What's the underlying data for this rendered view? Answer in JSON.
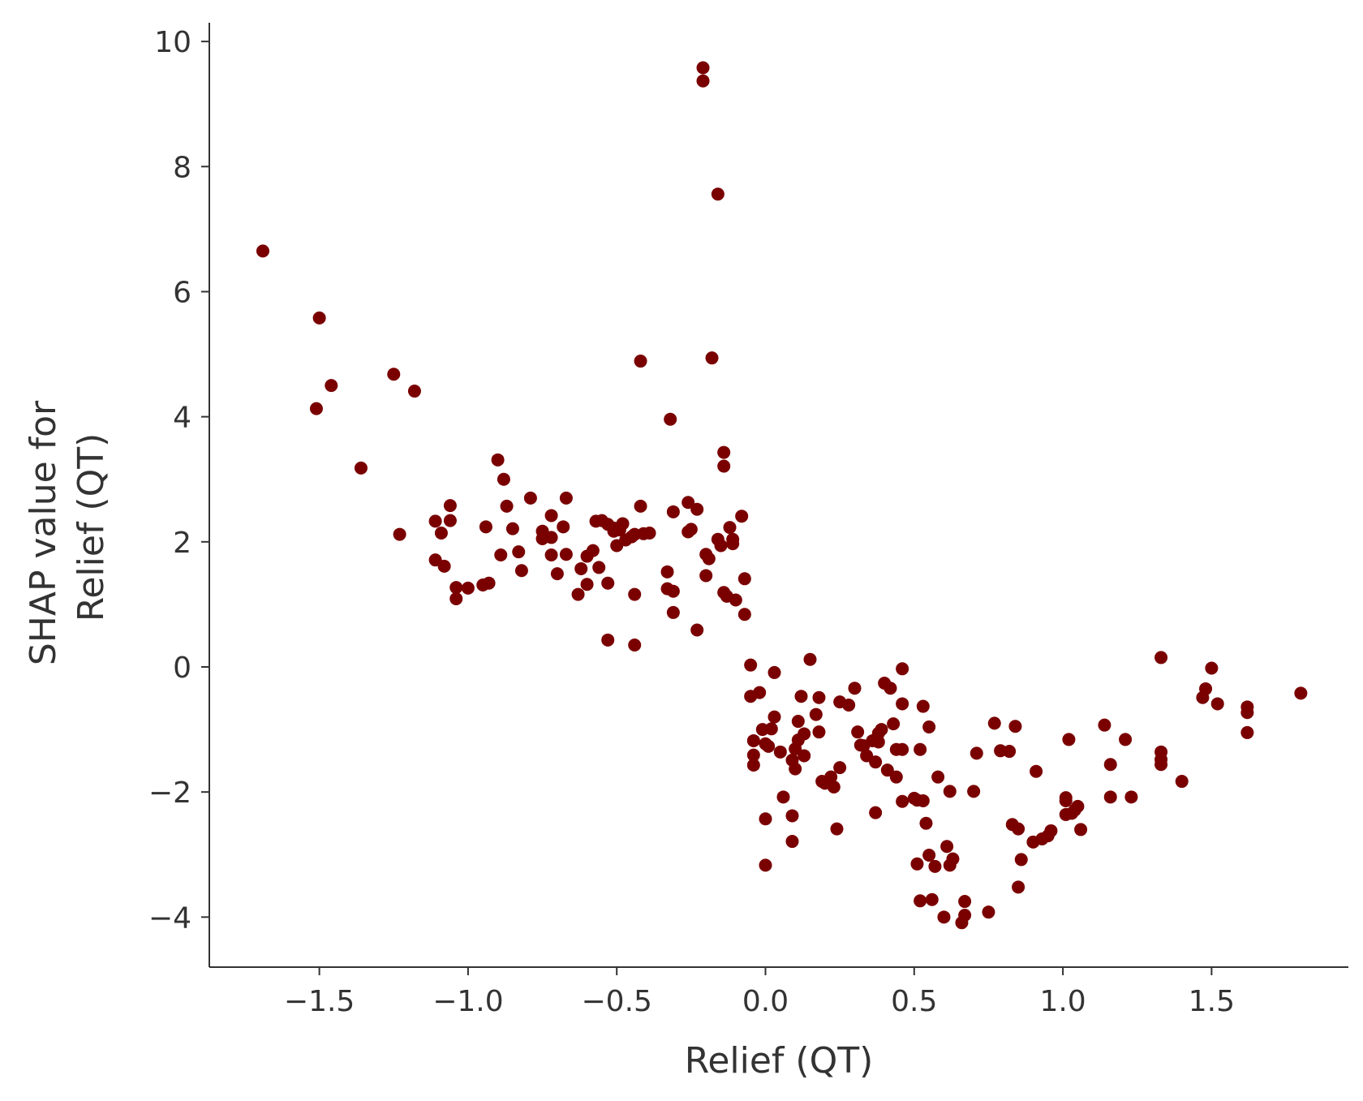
{
  "chart_data": {
    "type": "scatter",
    "title": "",
    "xlabel": "Relief (QT)",
    "ylabel_lines": [
      "SHAP value for",
      "Relief (QT)"
    ],
    "xlim": [
      -1.87,
      1.96
    ],
    "ylim": [
      -4.8,
      10.3
    ],
    "xticks": [
      -1.5,
      -1.0,
      -0.5,
      0.0,
      0.5,
      1.0,
      1.5
    ],
    "xtick_labels": [
      "−1.5",
      "−1.0",
      "−0.5",
      "0.0",
      "0.5",
      "1.0",
      "1.5"
    ],
    "yticks": [
      -4,
      -2,
      0,
      2,
      4,
      6,
      8,
      10
    ],
    "ytick_labels": [
      "−4",
      "−2",
      "0",
      "2",
      "4",
      "6",
      "8",
      "10"
    ],
    "grid": false,
    "color": "#7a0000",
    "points": [
      [
        -1.69,
        6.65
      ],
      [
        -1.5,
        5.58
      ],
      [
        -1.51,
        4.13
      ],
      [
        -1.46,
        4.5
      ],
      [
        -1.25,
        4.68
      ],
      [
        -1.18,
        4.41
      ],
      [
        -1.36,
        3.18
      ],
      [
        -1.23,
        2.12
      ],
      [
        -1.11,
        2.33
      ],
      [
        -1.09,
        2.14
      ],
      [
        -1.06,
        2.58
      ],
      [
        -1.06,
        2.34
      ],
      [
        -1.11,
        1.71
      ],
      [
        -1.08,
        1.61
      ],
      [
        -1.04,
        1.27
      ],
      [
        -1.04,
        1.09
      ],
      [
        -1.0,
        1.26
      ],
      [
        -0.95,
        1.31
      ],
      [
        -0.93,
        1.34
      ],
      [
        -0.94,
        2.24
      ],
      [
        -0.9,
        3.31
      ],
      [
        -0.88,
        3.0
      ],
      [
        -0.87,
        2.57
      ],
      [
        -0.89,
        1.79
      ],
      [
        -0.85,
        2.21
      ],
      [
        -0.83,
        1.84
      ],
      [
        -0.82,
        1.54
      ],
      [
        -0.79,
        2.7
      ],
      [
        -0.75,
        2.17
      ],
      [
        -0.75,
        2.05
      ],
      [
        -0.72,
        2.42
      ],
      [
        -0.72,
        2.07
      ],
      [
        -0.72,
        1.79
      ],
      [
        -0.7,
        1.49
      ],
      [
        -0.68,
        2.24
      ],
      [
        -0.67,
        2.7
      ],
      [
        -0.67,
        1.8
      ],
      [
        -0.63,
        1.16
      ],
      [
        -0.62,
        1.57
      ],
      [
        -0.6,
        1.77
      ],
      [
        -0.6,
        1.32
      ],
      [
        -0.58,
        1.86
      ],
      [
        -0.57,
        2.33
      ],
      [
        -0.55,
        2.34
      ],
      [
        -0.56,
        1.59
      ],
      [
        -0.53,
        2.28
      ],
      [
        -0.51,
        2.22
      ],
      [
        -0.51,
        2.17
      ],
      [
        -0.49,
        2.19
      ],
      [
        -0.48,
        2.29
      ],
      [
        -0.5,
        1.94
      ],
      [
        -0.47,
        2.03
      ],
      [
        -0.45,
        2.08
      ],
      [
        -0.44,
        2.12
      ],
      [
        -0.42,
        2.57
      ],
      [
        -0.41,
        2.13
      ],
      [
        -0.39,
        2.14
      ],
      [
        -0.53,
        1.34
      ],
      [
        -0.53,
        0.43
      ],
      [
        -0.44,
        1.16
      ],
      [
        -0.44,
        0.35
      ],
      [
        -0.42,
        4.89
      ],
      [
        -0.33,
        1.52
      ],
      [
        -0.33,
        1.25
      ],
      [
        -0.31,
        1.21
      ],
      [
        -0.31,
        0.87
      ],
      [
        -0.32,
        3.96
      ],
      [
        -0.31,
        2.48
      ],
      [
        -0.26,
        2.63
      ],
      [
        -0.26,
        2.16
      ],
      [
        -0.25,
        2.2
      ],
      [
        -0.23,
        2.52
      ],
      [
        -0.23,
        0.59
      ],
      [
        -0.21,
        9.58
      ],
      [
        -0.21,
        9.37
      ],
      [
        -0.18,
        4.94
      ],
      [
        -0.16,
        7.56
      ],
      [
        -0.14,
        3.43
      ],
      [
        -0.14,
        3.21
      ],
      [
        -0.12,
        2.23
      ],
      [
        -0.16,
        2.04
      ],
      [
        -0.15,
        1.94
      ],
      [
        -0.11,
        2.04
      ],
      [
        -0.11,
        1.97
      ],
      [
        -0.2,
        1.8
      ],
      [
        -0.19,
        1.73
      ],
      [
        -0.2,
        1.46
      ],
      [
        -0.14,
        1.19
      ],
      [
        -0.13,
        1.13
      ],
      [
        -0.1,
        1.07
      ],
      [
        -0.08,
        2.41
      ],
      [
        -0.07,
        1.41
      ],
      [
        -0.07,
        0.84
      ],
      [
        -0.05,
        0.03
      ],
      [
        -0.05,
        -0.47
      ],
      [
        -0.02,
        -0.41
      ],
      [
        -0.04,
        -1.18
      ],
      [
        -0.04,
        -1.41
      ],
      [
        -0.04,
        -1.57
      ],
      [
        -0.01,
        -1.0
      ],
      [
        0.0,
        -1.23
      ],
      [
        0.02,
        -0.99
      ],
      [
        0.01,
        -1.27
      ],
      [
        0.03,
        -0.8
      ],
      [
        0.03,
        -0.09
      ],
      [
        0.05,
        -1.36
      ],
      [
        0.06,
        -2.08
      ],
      [
        0.0,
        -2.43
      ],
      [
        0.0,
        -3.17
      ],
      [
        0.09,
        -2.38
      ],
      [
        0.09,
        -2.79
      ],
      [
        0.09,
        -1.49
      ],
      [
        0.1,
        -1.31
      ],
      [
        0.1,
        -1.63
      ],
      [
        0.11,
        -0.87
      ],
      [
        0.11,
        -1.17
      ],
      [
        0.12,
        -0.47
      ],
      [
        0.13,
        -1.07
      ],
      [
        0.13,
        -1.42
      ],
      [
        0.15,
        0.12
      ],
      [
        0.17,
        -0.76
      ],
      [
        0.18,
        -0.49
      ],
      [
        0.18,
        -1.04
      ],
      [
        0.19,
        -1.83
      ],
      [
        0.2,
        -1.86
      ],
      [
        0.22,
        -1.76
      ],
      [
        0.23,
        -1.92
      ],
      [
        0.24,
        -2.59
      ],
      [
        0.25,
        -1.61
      ],
      [
        0.25,
        -0.56
      ],
      [
        0.28,
        -0.61
      ],
      [
        0.3,
        -0.34
      ],
      [
        0.31,
        -1.04
      ],
      [
        0.32,
        -1.25
      ],
      [
        0.33,
        -1.26
      ],
      [
        0.34,
        -1.42
      ],
      [
        0.36,
        -1.18
      ],
      [
        0.37,
        -1.52
      ],
      [
        0.37,
        -2.33
      ],
      [
        0.38,
        -1.06
      ],
      [
        0.38,
        -1.2
      ],
      [
        0.39,
        -1.0
      ],
      [
        0.4,
        -0.26
      ],
      [
        0.41,
        -1.65
      ],
      [
        0.42,
        -0.34
      ],
      [
        0.43,
        -0.91
      ],
      [
        0.44,
        -1.76
      ],
      [
        0.44,
        -1.32
      ],
      [
        0.46,
        -1.32
      ],
      [
        0.46,
        -0.59
      ],
      [
        0.46,
        -0.03
      ],
      [
        0.46,
        -2.15
      ],
      [
        0.5,
        -2.1
      ],
      [
        0.51,
        -2.13
      ],
      [
        0.51,
        -3.15
      ],
      [
        0.52,
        -1.32
      ],
      [
        0.52,
        -3.74
      ],
      [
        0.53,
        -0.63
      ],
      [
        0.53,
        -2.14
      ],
      [
        0.54,
        -2.5
      ],
      [
        0.55,
        -0.96
      ],
      [
        0.55,
        -3.01
      ],
      [
        0.56,
        -3.72
      ],
      [
        0.57,
        -3.19
      ],
      [
        0.58,
        -1.76
      ],
      [
        0.6,
        -4.0
      ],
      [
        0.61,
        -2.87
      ],
      [
        0.62,
        -3.17
      ],
      [
        0.62,
        -1.99
      ],
      [
        0.63,
        -3.07
      ],
      [
        0.66,
        -4.09
      ],
      [
        0.67,
        -3.97
      ],
      [
        0.67,
        -3.75
      ],
      [
        0.7,
        -1.99
      ],
      [
        0.71,
        -1.38
      ],
      [
        0.75,
        -3.92
      ],
      [
        0.77,
        -0.9
      ],
      [
        0.79,
        -1.34
      ],
      [
        0.82,
        -1.35
      ],
      [
        0.83,
        -2.52
      ],
      [
        0.84,
        -0.95
      ],
      [
        0.85,
        -2.59
      ],
      [
        0.85,
        -3.52
      ],
      [
        0.86,
        -3.08
      ],
      [
        0.9,
        -2.8
      ],
      [
        0.91,
        -1.67
      ],
      [
        0.93,
        -2.75
      ],
      [
        0.95,
        -2.7
      ],
      [
        0.96,
        -2.62
      ],
      [
        1.01,
        -2.14
      ],
      [
        1.01,
        -2.09
      ],
      [
        1.01,
        -2.36
      ],
      [
        1.02,
        -1.16
      ],
      [
        1.03,
        -2.34
      ],
      [
        1.04,
        -2.29
      ],
      [
        1.05,
        -2.23
      ],
      [
        1.06,
        -2.6
      ],
      [
        1.14,
        -0.93
      ],
      [
        1.16,
        -1.56
      ],
      [
        1.16,
        -2.08
      ],
      [
        1.21,
        -1.16
      ],
      [
        1.23,
        -2.08
      ],
      [
        1.33,
        0.15
      ],
      [
        1.33,
        -1.36
      ],
      [
        1.33,
        -1.48
      ],
      [
        1.33,
        -1.56
      ],
      [
        1.4,
        -1.83
      ],
      [
        1.47,
        -0.49
      ],
      [
        1.48,
        -0.35
      ],
      [
        1.5,
        -0.02
      ],
      [
        1.52,
        -0.59
      ],
      [
        1.62,
        -0.64
      ],
      [
        1.62,
        -0.73
      ],
      [
        1.62,
        -1.05
      ],
      [
        1.8,
        -0.42
      ]
    ]
  }
}
